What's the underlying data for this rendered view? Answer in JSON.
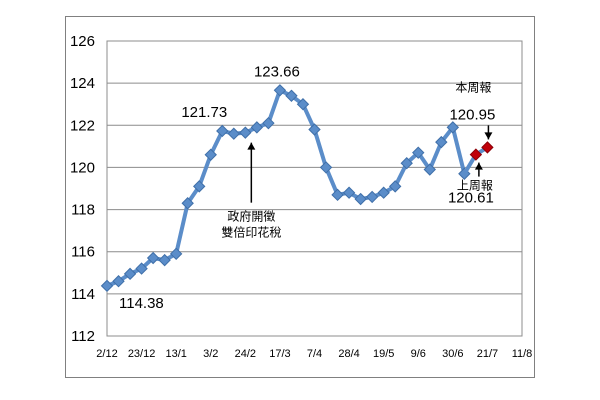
{
  "chart_data": {
    "type": "line",
    "ylim": [
      112,
      126
    ],
    "yticks": [
      "112",
      "114",
      "116",
      "118",
      "120",
      "122",
      "124",
      "126"
    ],
    "xticks": [
      "2/12",
      "23/12",
      "13/1",
      "3/2",
      "24/2",
      "17/3",
      "7/4",
      "28/4",
      "19/5",
      "9/6",
      "30/6",
      "21/7",
      "11/8"
    ],
    "grid": true,
    "series": [
      {
        "color": "#5B8DC9",
        "marker": "diamond",
        "x": [
          "2/12",
          "9/12",
          "16/12",
          "23/12",
          "30/12",
          "6/1",
          "13/1",
          "20/1",
          "27/1",
          "3/2",
          "10/2",
          "17/2",
          "24/2",
          "3/3",
          "10/3",
          "17/3",
          "24/3",
          "31/3",
          "7/4",
          "14/4",
          "21/4",
          "28/4",
          "5/5",
          "12/5",
          "19/5",
          "26/5",
          "2/6",
          "9/6",
          "16/6",
          "23/6",
          "30/6",
          "7/7"
        ],
        "values": [
          114.38,
          114.6,
          114.95,
          115.2,
          115.7,
          115.6,
          115.9,
          118.3,
          119.1,
          120.6,
          121.73,
          121.6,
          121.65,
          121.9,
          122.1,
          123.66,
          123.4,
          123.0,
          121.8,
          120.0,
          118.7,
          118.8,
          118.5,
          118.6,
          118.8,
          119.1,
          120.2,
          120.7,
          119.9,
          121.2,
          121.9,
          119.7
        ]
      },
      {
        "color": "#C0000A",
        "marker": "diamond",
        "x": [
          "14/7",
          "21/7"
        ],
        "values": [
          120.61,
          120.95
        ]
      }
    ],
    "data_labels": [
      {
        "text": "114.38",
        "x": "2/12",
        "y": 114.38
      },
      {
        "text": "121.73",
        "x": "10/2",
        "y": 121.73
      },
      {
        "text": "123.66",
        "x": "17/3",
        "y": 123.66
      },
      {
        "text": "120.95",
        "x": "21/7",
        "y": 120.95
      },
      {
        "text": "120.61",
        "x": "14/7",
        "y": 120.61
      }
    ],
    "annotations": [
      {
        "lines": [
          "政府開徵",
          "雙倍印花稅"
        ],
        "x": "24/2",
        "y": 121.65
      },
      {
        "lines": [
          "本周報"
        ],
        "x": "21/7",
        "y": 120.95
      },
      {
        "lines": [
          "上周報"
        ],
        "x": "14/7",
        "y": 120.61
      }
    ]
  }
}
